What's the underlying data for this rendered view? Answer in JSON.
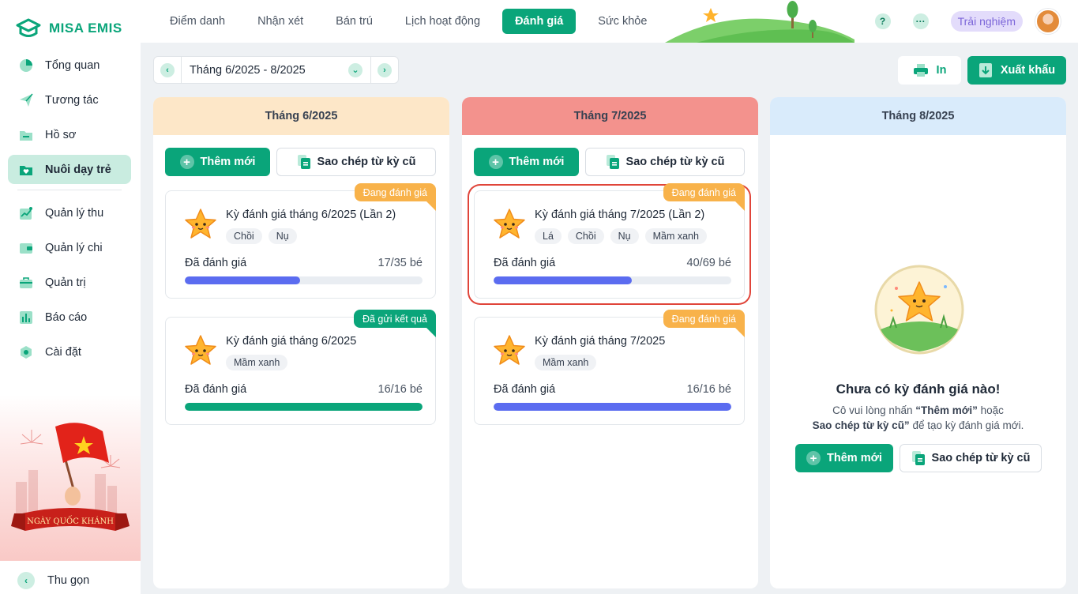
{
  "app": {
    "name": "MISA EMIS"
  },
  "sidebar": {
    "items": [
      {
        "label": "Tổng quan",
        "icon": "pie-chart-icon"
      },
      {
        "label": "Tương tác",
        "icon": "paper-plane-icon"
      },
      {
        "label": "Hồ sơ",
        "icon": "folder-icon"
      },
      {
        "label": "Nuôi dạy trẻ",
        "icon": "heart-folder-icon",
        "active": true
      },
      {
        "label": "Quản lý thu",
        "icon": "trend-chart-icon"
      },
      {
        "label": "Quản lý chi",
        "icon": "wallet-icon"
      },
      {
        "label": "Quản trị",
        "icon": "briefcase-icon"
      },
      {
        "label": "Báo cáo",
        "icon": "bar-chart-icon"
      },
      {
        "label": "Cài đặt",
        "icon": "gear-icon"
      }
    ],
    "promo_text": "NGÀY QUỐC KHÁNH",
    "collapse_label": "Thu gọn"
  },
  "header": {
    "tabs": [
      {
        "label": "Điểm danh"
      },
      {
        "label": "Nhận xét"
      },
      {
        "label": "Bán trú"
      },
      {
        "label": "Lịch hoạt động"
      },
      {
        "label": "Đánh giá",
        "active": true
      },
      {
        "label": "Sức khỏe"
      }
    ],
    "help": "?",
    "more": "···",
    "trial_label": "Trải nghiệm"
  },
  "toolbar": {
    "period": "Tháng 6/2025 - 8/2025",
    "print_label": "In",
    "export_label": "Xuất khẩu"
  },
  "columns": [
    {
      "title": "Tháng 6/2025",
      "head_color": "#fde7c8",
      "add_label": "Thêm mới",
      "copy_label": "Sao chép từ kỳ cũ",
      "cards": [
        {
          "title": "Kỳ đánh giá tháng 6/2025 (Lần 2)",
          "badge": "Đang đánh giá",
          "badge_type": "orange",
          "tags": [
            "Chồi",
            "Nụ"
          ],
          "progress_label": "Đã đánh giá",
          "progress_count": "17/35 bé",
          "progress": 0.486,
          "bar_color": "#5b6cf0"
        },
        {
          "title": "Kỳ đánh giá tháng 6/2025",
          "badge": "Đã gửi kết quả",
          "badge_type": "green",
          "tags": [
            "Mầm xanh"
          ],
          "progress_label": "Đã đánh giá",
          "progress_count": "16/16 bé",
          "progress": 1.0,
          "bar_color": "#0aa57a"
        }
      ]
    },
    {
      "title": "Tháng 7/2025",
      "head_color": "#f3928d",
      "add_label": "Thêm mới",
      "copy_label": "Sao chép từ kỳ cũ",
      "cards": [
        {
          "title": "Kỳ đánh giá tháng 7/2025 (Lần 2)",
          "badge": "Đang đánh giá",
          "badge_type": "orange",
          "tags": [
            "Lá",
            "Chồi",
            "Nụ",
            "Mầm xanh"
          ],
          "progress_label": "Đã đánh giá",
          "progress_count": "40/69 bé",
          "progress": 0.58,
          "bar_color": "#5b6cf0",
          "highlight": true
        },
        {
          "title": "Kỳ đánh giá tháng 7/2025",
          "badge": "Đang đánh giá",
          "badge_type": "orange",
          "tags": [
            "Mầm xanh"
          ],
          "progress_label": "Đã đánh giá",
          "progress_count": "16/16 bé",
          "progress": 1.0,
          "bar_color": "#5b6cf0"
        }
      ]
    },
    {
      "title": "Tháng 8/2025",
      "head_color": "#d9ebfb",
      "empty": {
        "title": "Chưa có kỳ đánh giá nào!",
        "desc_prefix": "Cô vui lòng nhấn ",
        "desc_bold1": "“Thêm mới”",
        "desc_mid": " hoặc",
        "desc_bold2": "Sao chép từ kỳ cũ”",
        "desc_suffix": " để tạo kỳ đánh giá mới.",
        "add_label": "Thêm mới",
        "copy_label": "Sao chép từ kỳ cũ"
      }
    }
  ],
  "colors": {
    "brand": "#0aa57a",
    "progress": "#5b6cf0",
    "badge_orange": "#f8b24a",
    "highlight": "#e0453a"
  }
}
